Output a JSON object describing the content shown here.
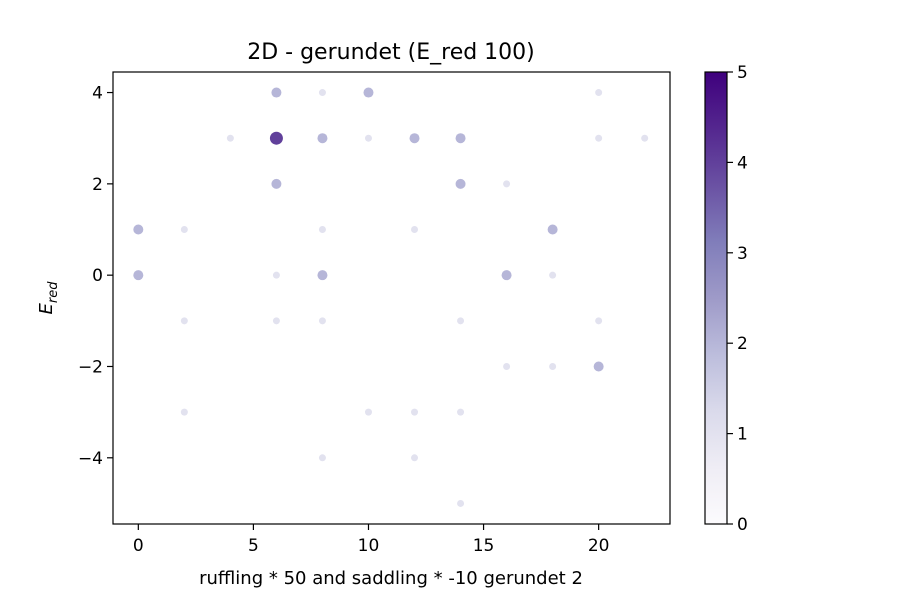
{
  "chart_data": {
    "type": "scatter",
    "title": "2D - gerundet (E_red 100)",
    "xlabel": "ruffling * 50 and saddling * -10 gerundet 2",
    "ylabel_main": "E",
    "ylabel_sub": "red",
    "xlim": [
      -1.1,
      23.1
    ],
    "ylim": [
      -5.45,
      4.45
    ],
    "xticks": [
      0,
      5,
      10,
      15,
      20
    ],
    "yticks": [
      -4,
      -2,
      0,
      2,
      4
    ],
    "xtick_labels": [
      "0",
      "5",
      "10",
      "15",
      "20"
    ],
    "ytick_labels": [
      "−4",
      "−2",
      "0",
      "2",
      "4"
    ],
    "grid": false,
    "colormap": "Purples",
    "colorbar": {
      "min": 0,
      "max": 5,
      "ticks": [
        0,
        1,
        2,
        3,
        4,
        5
      ],
      "tick_labels": [
        "0",
        "1",
        "2",
        "3",
        "4",
        "5"
      ],
      "stops": [
        "#fcfbfd",
        "#efedf5",
        "#dadaeb",
        "#bcbddc",
        "#9e9ac8",
        "#807dba",
        "#6a51a3",
        "#54278f",
        "#3f007d"
      ]
    },
    "points": [
      {
        "x": 0,
        "y": 1,
        "c": 2
      },
      {
        "x": 0,
        "y": 0,
        "c": 2
      },
      {
        "x": 2,
        "y": 1,
        "c": 1
      },
      {
        "x": 2,
        "y": -1,
        "c": 1
      },
      {
        "x": 2,
        "y": -3,
        "c": 1
      },
      {
        "x": 4,
        "y": 3,
        "c": 1
      },
      {
        "x": 6,
        "y": 4,
        "c": 2
      },
      {
        "x": 6,
        "y": 3,
        "c": 4
      },
      {
        "x": 6,
        "y": 2,
        "c": 2
      },
      {
        "x": 6,
        "y": 0,
        "c": 1
      },
      {
        "x": 6,
        "y": -1,
        "c": 1
      },
      {
        "x": 8,
        "y": 4,
        "c": 1
      },
      {
        "x": 8,
        "y": 3,
        "c": 2
      },
      {
        "x": 8,
        "y": 1,
        "c": 1
      },
      {
        "x": 8,
        "y": 0,
        "c": 2
      },
      {
        "x": 8,
        "y": -1,
        "c": 1
      },
      {
        "x": 8,
        "y": -4,
        "c": 1
      },
      {
        "x": 10,
        "y": 4,
        "c": 2
      },
      {
        "x": 10,
        "y": 3,
        "c": 1
      },
      {
        "x": 10,
        "y": -3,
        "c": 1
      },
      {
        "x": 12,
        "y": 3,
        "c": 2
      },
      {
        "x": 12,
        "y": 1,
        "c": 1
      },
      {
        "x": 12,
        "y": -3,
        "c": 1
      },
      {
        "x": 12,
        "y": -4,
        "c": 1
      },
      {
        "x": 14,
        "y": 3,
        "c": 2
      },
      {
        "x": 14,
        "y": 2,
        "c": 2
      },
      {
        "x": 14,
        "y": -1,
        "c": 1
      },
      {
        "x": 14,
        "y": -3,
        "c": 1
      },
      {
        "x": 14,
        "y": -5,
        "c": 1
      },
      {
        "x": 16,
        "y": 2,
        "c": 1
      },
      {
        "x": 16,
        "y": 0,
        "c": 2
      },
      {
        "x": 16,
        "y": -2,
        "c": 1
      },
      {
        "x": 18,
        "y": 1,
        "c": 2
      },
      {
        "x": 18,
        "y": 0,
        "c": 1
      },
      {
        "x": 18,
        "y": -2,
        "c": 1
      },
      {
        "x": 20,
        "y": 4,
        "c": 1
      },
      {
        "x": 20,
        "y": 3,
        "c": 1
      },
      {
        "x": 20,
        "y": -1,
        "c": 1
      },
      {
        "x": 20,
        "y": -2,
        "c": 2
      },
      {
        "x": 22,
        "y": 3,
        "c": 1
      }
    ]
  }
}
